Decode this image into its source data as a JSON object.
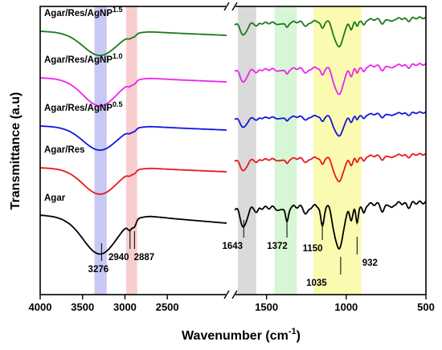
{
  "chart_data": {
    "type": "line",
    "xlabel": "Wavenumber (cm",
    "xlabel_sup": "-1",
    "xlabel_close": ")",
    "ylabel": "Transmittance (a.u)",
    "xlim": [
      4000,
      500
    ],
    "axis_break": [
      1800,
      1700
    ],
    "x_ticks": [
      {
        "value": 4000,
        "label": "4000"
      },
      {
        "value": 3500,
        "label": "3500"
      },
      {
        "value": 3000,
        "label": "3000"
      },
      {
        "value": 2500,
        "label": "2500"
      },
      {
        "value": 1500,
        "label": "1500"
      },
      {
        "value": 1000,
        "label": "1000"
      },
      {
        "value": 500,
        "label": "500"
      }
    ],
    "highlight_bands": [
      {
        "from": 3360,
        "to": 3215,
        "color": "#c8c8f4"
      },
      {
        "from": 2985,
        "to": 2855,
        "color": "#f8cdcd"
      },
      {
        "from": 1680,
        "to": 1565,
        "color": "#dadada"
      },
      {
        "from": 1450,
        "to": 1310,
        "color": "#d6f6d6"
      },
      {
        "from": 1205,
        "to": 905,
        "color": "#fafab0"
      }
    ],
    "series": [
      {
        "name": "Agar",
        "name_sup": "",
        "color": "#000000",
        "offset": 0
      },
      {
        "name": "Agar/Res",
        "name_sup": "",
        "color": "#e8171b",
        "offset": 1
      },
      {
        "name": "Agar/Res/AgNP",
        "name_sup": "0.5",
        "color": "#1216e0",
        "offset": 2
      },
      {
        "name": "Agar/Res/AgNP",
        "name_sup": "1.0",
        "color": "#ee22ee",
        "offset": 3
      },
      {
        "name": "Agar/Res/AgNP",
        "name_sup": "1.5",
        "color": "#1a7a1a",
        "offset": 4
      }
    ],
    "annotations": [
      {
        "label": "3276",
        "x": 3276
      },
      {
        "label": "2940",
        "x": 2940
      },
      {
        "label": "2887",
        "x": 2887
      },
      {
        "label": "1643",
        "x": 1643
      },
      {
        "label": "1372",
        "x": 1372
      },
      {
        "label": "1150",
        "x": 1150
      },
      {
        "label": "1035",
        "x": 1035
      },
      {
        "label": "932",
        "x": 932
      }
    ]
  }
}
